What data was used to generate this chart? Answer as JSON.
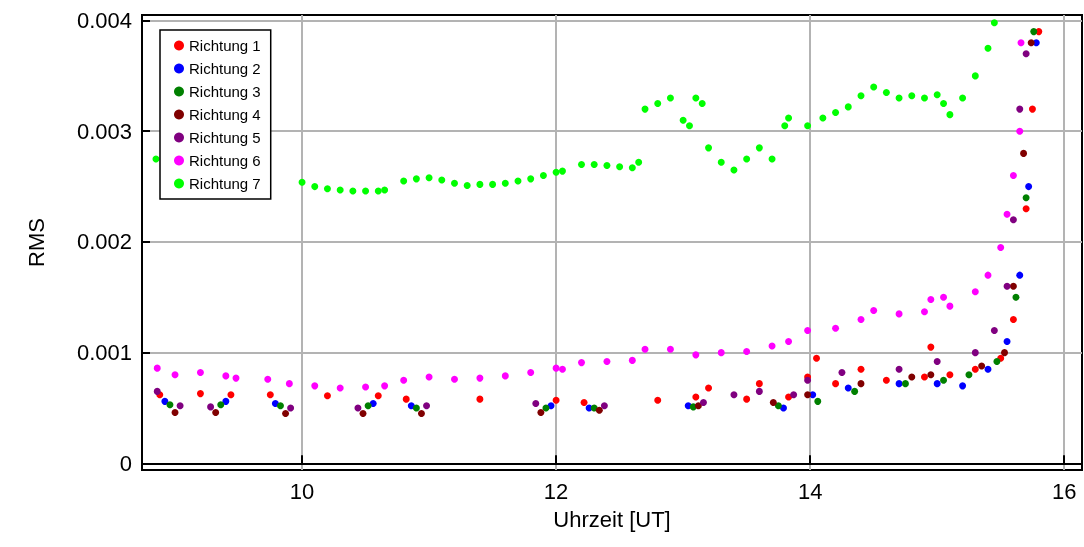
{
  "chart_data": {
    "type": "scatter",
    "xlabel": "Uhrzeit [UT]",
    "ylabel": "RMS",
    "xlim": [
      8.74,
      16.14
    ],
    "ylim": [
      -6e-05,
      0.00405
    ],
    "xticks": [
      10,
      12,
      14,
      16
    ],
    "yticks": [
      0,
      0.001,
      0.002,
      0.003,
      0.004
    ],
    "grid": true,
    "legend": "top left",
    "marker": "circle",
    "series": [
      {
        "name": "Richtung 1",
        "color": "#ff0000",
        "x": [
          8.88,
          9.2,
          9.44,
          9.75,
          10.2,
          10.6,
          10.82,
          11.4,
          12.0,
          12.22,
          12.8,
          13.1,
          13.2,
          13.5,
          13.6,
          13.83,
          13.98,
          14.05,
          14.2,
          14.4,
          14.6,
          14.9,
          14.95,
          15.1,
          15.3,
          15.5,
          15.6,
          15.7,
          15.75,
          15.8
        ],
        "values": [
          0.00062,
          0.00063,
          0.00062,
          0.00062,
          0.00061,
          0.00061,
          0.00058,
          0.00058,
          0.00057,
          0.00055,
          0.00057,
          0.0006,
          0.00068,
          0.00058,
          0.00072,
          0.0006,
          0.00078,
          0.00095,
          0.00072,
          0.00085,
          0.00075,
          0.00078,
          0.00105,
          0.0008,
          0.00085,
          0.00095,
          0.0013,
          0.0023,
          0.0032,
          0.0039
        ]
      },
      {
        "name": "Richtung 2",
        "color": "#0000ff",
        "x": [
          8.92,
          9.4,
          9.79,
          10.56,
          10.86,
          11.96,
          12.26,
          13.04,
          13.79,
          14.02,
          14.3,
          14.7,
          15.0,
          15.2,
          15.4,
          15.55,
          15.65,
          15.72,
          15.78
        ],
        "values": [
          0.00056,
          0.00056,
          0.00054,
          0.00054,
          0.00052,
          0.00052,
          0.0005,
          0.00052,
          0.0005,
          0.00062,
          0.00068,
          0.00072,
          0.00072,
          0.0007,
          0.00085,
          0.0011,
          0.0017,
          0.0025,
          0.0038
        ]
      },
      {
        "name": "Richtung 3",
        "color": "#008000",
        "x": [
          8.96,
          9.36,
          9.83,
          10.52,
          10.9,
          11.92,
          12.3,
          13.08,
          13.75,
          14.06,
          14.35,
          14.75,
          15.05,
          15.25,
          15.47,
          15.62,
          15.7,
          15.76
        ],
        "values": [
          0.00053,
          0.00053,
          0.00052,
          0.00052,
          0.0005,
          0.0005,
          0.0005,
          0.00051,
          0.00052,
          0.00056,
          0.00065,
          0.00072,
          0.00075,
          0.0008,
          0.00092,
          0.0015,
          0.0024,
          0.0039
        ]
      },
      {
        "name": "Richtung 4",
        "color": "#800000",
        "x": [
          9.0,
          9.32,
          9.87,
          10.48,
          10.94,
          11.88,
          12.34,
          13.12,
          13.71,
          13.98,
          14.4,
          14.8,
          14.95,
          15.35,
          15.53,
          15.6,
          15.68,
          15.74
        ],
        "values": [
          0.00046,
          0.00046,
          0.00045,
          0.00045,
          0.00045,
          0.00046,
          0.00048,
          0.00052,
          0.00055,
          0.00062,
          0.00072,
          0.00078,
          0.0008,
          0.00088,
          0.001,
          0.0016,
          0.0028,
          0.0038
        ]
      },
      {
        "name": "Richtung 5",
        "color": "#800080",
        "x": [
          8.86,
          9.04,
          9.28,
          9.91,
          10.44,
          10.98,
          11.84,
          12.38,
          13.16,
          13.4,
          13.6,
          13.87,
          13.98,
          14.25,
          14.7,
          15.0,
          15.3,
          15.45,
          15.55,
          15.6,
          15.65,
          15.7
        ],
        "values": [
          0.00065,
          0.00052,
          0.00051,
          0.0005,
          0.0005,
          0.00052,
          0.00054,
          0.00052,
          0.00055,
          0.00062,
          0.00065,
          0.00062,
          0.00075,
          0.00082,
          0.00085,
          0.00092,
          0.001,
          0.0012,
          0.0016,
          0.0022,
          0.0032,
          0.0037
        ]
      },
      {
        "name": "Richtung 6",
        "color": "#ff00ff",
        "x": [
          8.86,
          9.0,
          9.2,
          9.4,
          9.48,
          9.73,
          9.9,
          10.1,
          10.3,
          10.5,
          10.65,
          10.8,
          11.0,
          11.2,
          11.4,
          11.6,
          11.8,
          12.0,
          12.05,
          12.2,
          12.4,
          12.6,
          12.7,
          12.9,
          13.1,
          13.3,
          13.5,
          13.7,
          13.83,
          13.98,
          14.2,
          14.4,
          14.5,
          14.7,
          14.9,
          14.95,
          15.05,
          15.1,
          15.3,
          15.4,
          15.5,
          15.55,
          15.6,
          15.65,
          15.66
        ],
        "values": [
          0.00086,
          0.0008,
          0.00082,
          0.00079,
          0.00077,
          0.00076,
          0.00072,
          0.0007,
          0.00068,
          0.00069,
          0.0007,
          0.00075,
          0.00078,
          0.00076,
          0.00077,
          0.00079,
          0.00082,
          0.00086,
          0.00085,
          0.00091,
          0.00092,
          0.00093,
          0.00103,
          0.00103,
          0.00098,
          0.001,
          0.00101,
          0.00106,
          0.0011,
          0.0012,
          0.00122,
          0.0013,
          0.00138,
          0.00135,
          0.00137,
          0.00148,
          0.0015,
          0.00142,
          0.00155,
          0.0017,
          0.00195,
          0.00225,
          0.0026,
          0.003,
          0.0038
        ]
      },
      {
        "name": "Richtung 7",
        "color": "#00ff00",
        "x": [
          8.85,
          10.0,
          10.1,
          10.2,
          10.3,
          10.4,
          10.5,
          10.6,
          10.65,
          10.8,
          10.9,
          11.0,
          11.1,
          11.2,
          11.3,
          11.4,
          11.5,
          11.6,
          11.7,
          11.8,
          11.9,
          12.0,
          12.05,
          12.2,
          12.3,
          12.4,
          12.5,
          12.6,
          12.65,
          12.7,
          12.8,
          12.9,
          13.0,
          13.05,
          13.1,
          13.15,
          13.2,
          13.3,
          13.4,
          13.5,
          13.6,
          13.7,
          13.8,
          13.83,
          13.98,
          14.1,
          14.2,
          14.3,
          14.4,
          14.5,
          14.6,
          14.7,
          14.8,
          14.9,
          15.0,
          15.05,
          15.1,
          15.2,
          15.3,
          15.4,
          15.45
        ],
        "values": [
          0.00275,
          0.00254,
          0.0025,
          0.00248,
          0.00247,
          0.00246,
          0.00246,
          0.00246,
          0.00247,
          0.00255,
          0.00257,
          0.00258,
          0.00256,
          0.00253,
          0.00251,
          0.00252,
          0.00252,
          0.00253,
          0.00255,
          0.00257,
          0.0026,
          0.00263,
          0.00264,
          0.0027,
          0.0027,
          0.00269,
          0.00268,
          0.00267,
          0.00272,
          0.0032,
          0.00325,
          0.0033,
          0.0031,
          0.00305,
          0.0033,
          0.00325,
          0.00285,
          0.00272,
          0.00265,
          0.00275,
          0.00285,
          0.00275,
          0.00305,
          0.00312,
          0.00305,
          0.00312,
          0.00317,
          0.00322,
          0.00332,
          0.0034,
          0.00335,
          0.0033,
          0.00332,
          0.0033,
          0.00333,
          0.00325,
          0.00315,
          0.0033,
          0.0035,
          0.00375,
          0.00398
        ]
      }
    ]
  }
}
